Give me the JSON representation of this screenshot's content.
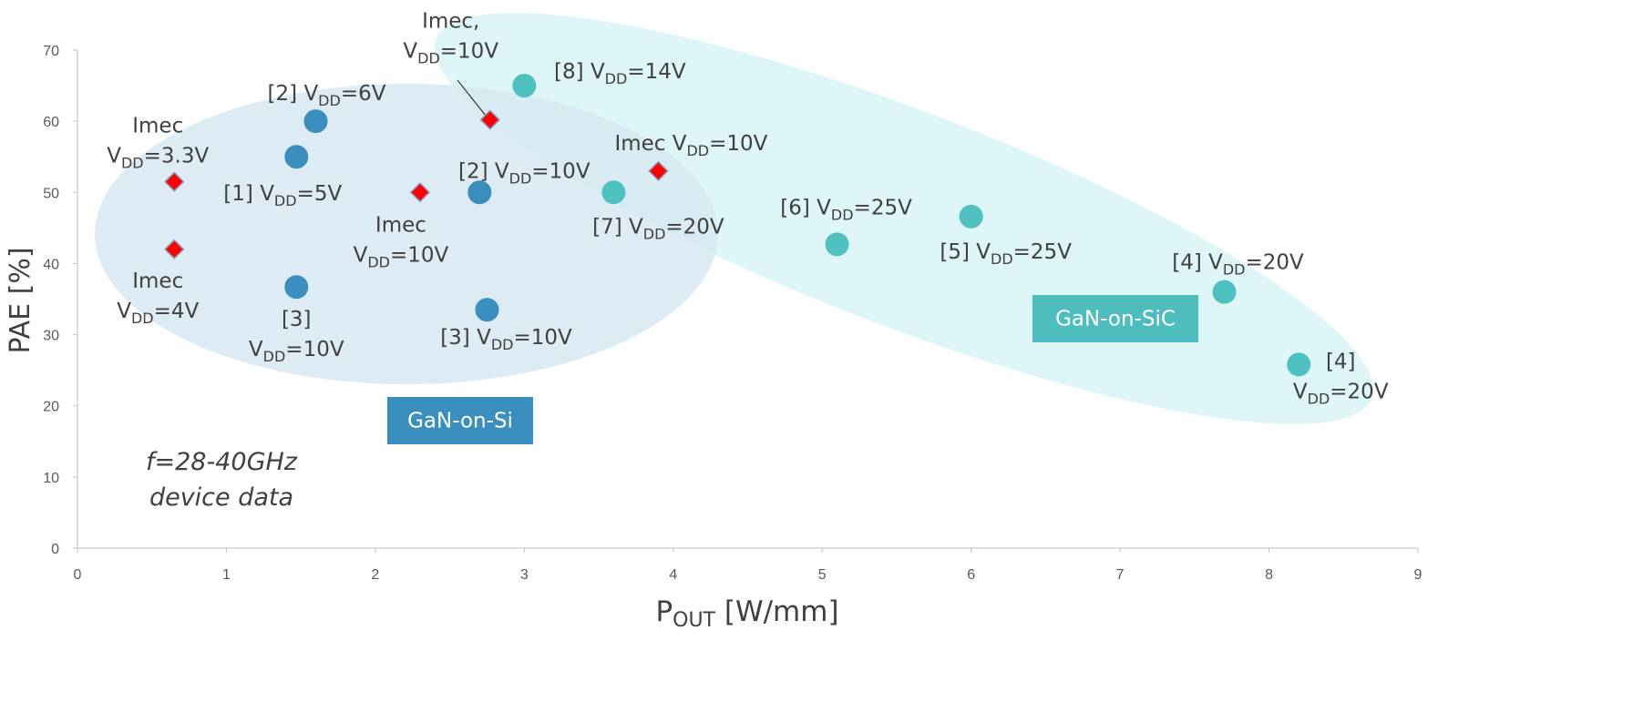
{
  "chart_data": {
    "type": "scatter",
    "xlim": [
      0,
      9
    ],
    "ylim": [
      0,
      70
    ],
    "xticks": [
      0,
      1,
      2,
      3,
      4,
      5,
      6,
      7,
      8,
      9
    ],
    "yticks": [
      0,
      10,
      20,
      30,
      40,
      50,
      60,
      70
    ],
    "grid": false,
    "x_label": [
      "P",
      "OUT",
      " [W/mm]"
    ],
    "y_label": "PAE [%]",
    "annotations": [
      "f=28-40GHz",
      "device data"
    ],
    "series": [
      {
        "name": "GaN-on-Si",
        "color": "#3a8fbf",
        "marker": "circle",
        "x": [
          1.6,
          1.47,
          2.7,
          1.47,
          2.75
        ],
        "values": [
          60,
          55,
          50,
          36.7,
          33.5
        ],
        "labels": [
          [
            [
              "[2] V",
              "DD",
              "=6V"
            ]
          ],
          [
            [
              "[1] V",
              "DD",
              "=5V"
            ]
          ],
          [
            [
              "[2] V",
              "DD",
              "=10V"
            ]
          ],
          [
            [
              "[3]"
            ],
            [
              "V",
              "DD",
              "=10V"
            ]
          ],
          [
            [
              "[3] V",
              "DD",
              "=10V"
            ]
          ]
        ]
      },
      {
        "name": "GaN-on-SiC",
        "color": "#4fc1c1",
        "marker": "circle",
        "x": [
          3.0,
          3.6,
          5.1,
          6.0,
          7.7,
          8.2
        ],
        "values": [
          65,
          50,
          42.7,
          46.6,
          36,
          25.8
        ],
        "labels": [
          [
            [
              "[8] V",
              "DD",
              "=14V"
            ]
          ],
          [
            [
              "[7] V",
              "DD",
              "=20V"
            ]
          ],
          [
            [
              "[6] V",
              "DD",
              "=25V"
            ]
          ],
          [
            [
              "[5] V",
              "DD",
              "=25V"
            ]
          ],
          [
            [
              "[4] V",
              "DD",
              "=20V"
            ]
          ],
          [
            [
              "[4]"
            ],
            [
              "V",
              "DD",
              "=20V"
            ]
          ]
        ]
      },
      {
        "color": "#ff0000",
        "marker": "diamond",
        "x": [
          0.65,
          0.65,
          2.3,
          2.77,
          3.9
        ],
        "values": [
          51.5,
          42,
          50,
          60.2,
          53
        ],
        "labels": [
          [
            [
              "Imec"
            ],
            [
              "V",
              "DD",
              "=3.3V"
            ]
          ],
          [
            [
              "Imec"
            ],
            [
              "V",
              "DD",
              "=4V"
            ]
          ],
          [
            [
              "Imec"
            ],
            [
              "V",
              "DD",
              "=10V"
            ]
          ],
          [
            [
              "Imec,"
            ],
            [
              "V",
              "DD",
              "=10V"
            ]
          ],
          [
            [
              "Imec V",
              "DD",
              "=10V"
            ]
          ]
        ]
      }
    ]
  }
}
